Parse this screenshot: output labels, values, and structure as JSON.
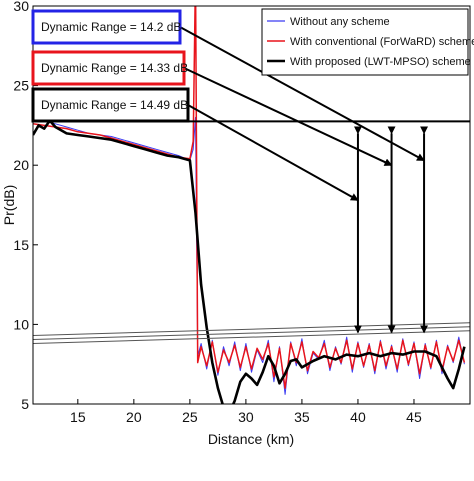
{
  "chart_data": {
    "type": "line",
    "xlabel": "Distance (km)",
    "ylabel": "Pr(dB)",
    "xlim": [
      11,
      50
    ],
    "ylim": [
      5,
      30
    ],
    "xticks": [
      15,
      20,
      25,
      30,
      35,
      40,
      45
    ],
    "yticks": [
      5,
      10,
      15,
      20,
      25,
      30
    ],
    "legend_position": "top-right",
    "series": [
      {
        "name": "Without any scheme",
        "color": "#3b3bf2",
        "x": [
          11,
          12,
          13,
          14,
          15,
          16,
          17,
          18,
          19,
          20,
          21,
          22,
          23,
          24,
          25,
          25.3,
          25.5,
          25.7,
          26,
          26.5,
          27,
          27.5,
          28,
          28.5,
          29,
          29.5,
          30,
          30.5,
          31,
          31.5,
          32,
          32.5,
          33,
          33.5,
          34,
          34.5,
          35,
          35.5,
          36,
          36.5,
          37,
          37.5,
          38,
          38.5,
          39,
          39.5,
          40,
          40.5,
          41,
          41.5,
          42,
          42.5,
          43,
          43.5,
          44,
          44.5,
          45,
          45.5,
          46,
          46.5,
          47,
          47.5,
          48,
          48.5,
          49,
          49.5
        ],
        "y": [
          22.8,
          22.8,
          22.6,
          22.4,
          22.2,
          22.0,
          21.9,
          21.8,
          21.6,
          21.4,
          21.2,
          21.0,
          20.8,
          20.6,
          20.3,
          21.0,
          23.0,
          8.0,
          8.8,
          7.2,
          9.0,
          6.8,
          8.6,
          7.4,
          8.9,
          7.1,
          8.8,
          7.0,
          8.4,
          7.6,
          9.0,
          6.4,
          8.6,
          5.6,
          8.9,
          7.4,
          9.1,
          6.9,
          8.2,
          7.8,
          9.0,
          7.1,
          8.6,
          7.5,
          9.2,
          7.0,
          8.9,
          7.3,
          8.8,
          6.9,
          9.0,
          7.2,
          8.7,
          7.0,
          9.1,
          7.4,
          8.9,
          6.6,
          8.8,
          7.2,
          9.0,
          6.9,
          8.7,
          7.6,
          9.2,
          7.5
        ]
      },
      {
        "name": "With conventional (ForWaRD) scheme",
        "color": "#e8141c",
        "x": [
          11,
          12,
          13,
          14,
          15,
          16,
          17,
          18,
          19,
          20,
          21,
          22,
          23,
          24,
          25,
          25.3,
          25.5,
          25.7,
          26,
          26.5,
          27,
          27.5,
          28,
          28.5,
          29,
          29.5,
          30,
          30.5,
          31,
          31.5,
          32,
          32.5,
          33,
          33.5,
          34,
          34.5,
          35,
          35.5,
          36,
          36.5,
          37,
          37.5,
          38,
          38.5,
          39,
          39.5,
          40,
          40.5,
          41,
          41.5,
          42,
          42.5,
          43,
          43.5,
          44,
          44.5,
          45,
          45.5,
          46,
          46.5,
          47,
          47.5,
          48,
          48.5,
          49,
          49.5
        ],
        "y": [
          22.6,
          22.5,
          22.4,
          22.3,
          22.1,
          22.0,
          21.9,
          21.7,
          21.5,
          21.3,
          21.1,
          20.9,
          20.7,
          20.5,
          20.4,
          21.5,
          32.0,
          7.6,
          8.6,
          7.4,
          8.9,
          7.0,
          8.4,
          7.6,
          8.7,
          7.3,
          8.6,
          7.2,
          8.5,
          7.8,
          8.8,
          6.7,
          8.5,
          6.0,
          8.8,
          7.6,
          8.9,
          7.1,
          8.3,
          7.9,
          8.8,
          7.3,
          8.5,
          7.6,
          9.0,
          7.2,
          8.8,
          7.4,
          8.7,
          7.1,
          8.9,
          7.4,
          8.6,
          7.2,
          9.0,
          7.5,
          8.8,
          6.9,
          8.7,
          7.3,
          8.9,
          7.1,
          8.6,
          7.7,
          9.0,
          7.6
        ]
      },
      {
        "name": "With proposed (LWT-MPSO) scheme",
        "color": "#000000",
        "x": [
          11,
          11.5,
          12,
          12.5,
          13,
          14,
          15,
          16,
          17,
          18,
          19,
          20,
          21,
          22,
          23,
          24,
          25,
          25.5,
          26,
          26.5,
          27,
          27.5,
          28,
          28.5,
          29,
          29.5,
          30,
          30.5,
          31,
          31.5,
          32,
          32.5,
          33,
          33.5,
          34,
          34.5,
          35,
          36,
          37,
          38,
          39,
          40,
          41,
          42,
          43,
          44,
          45,
          46,
          47,
          47.5,
          48,
          48.5,
          49,
          49.5
        ],
        "y": [
          21.9,
          22.5,
          22.3,
          22.8,
          22.4,
          22.0,
          21.9,
          21.8,
          21.7,
          21.6,
          21.4,
          21.2,
          21.0,
          20.8,
          20.6,
          20.5,
          20.3,
          17.0,
          12.5,
          9.8,
          7.6,
          6.0,
          4.8,
          4.4,
          5.2,
          6.4,
          6.9,
          6.6,
          6.2,
          7.0,
          8.0,
          7.4,
          6.3,
          6.9,
          7.7,
          7.8,
          7.3,
          7.7,
          8.0,
          7.8,
          8.1,
          8.0,
          8.2,
          8.0,
          8.2,
          8.1,
          8.3,
          8.3,
          8.0,
          7.3,
          6.6,
          6.0,
          7.2,
          8.6
        ]
      }
    ],
    "annotations": [
      {
        "text": "Dynamic Range = 14.2 dB",
        "border_color": "#2323e6"
      },
      {
        "text": "Dynamic Range = 14.33 dB",
        "border_color": "#e8141c"
      },
      {
        "text": "Dynamic Range = 14.49 dB",
        "border_color": "#000000"
      }
    ]
  }
}
